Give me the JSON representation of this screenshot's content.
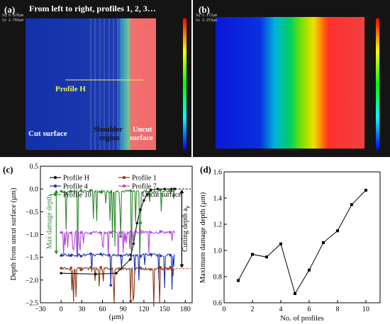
{
  "panels": {
    "a": {
      "tag": "(a)",
      "header": "From left to right, profiles 1, 2, 3…",
      "profile_label": "Profile H",
      "regions": [
        "Cut surface",
        "Shoulder region",
        "Uncut surface"
      ],
      "stats": [
        "Sq 0.826μm",
        "Sz 2.760μm"
      ]
    },
    "b": {
      "tag": "(b)",
      "stats": [
        "Sq 1.172μm",
        "Sz 3.253μm"
      ]
    },
    "c": {
      "tag": "(c)"
    },
    "d": {
      "tag": "(d)"
    }
  },
  "colors": {
    "profile_H": "#111111",
    "profile_1": "#8b3a1a",
    "profile_4": "#1a33b0",
    "profile_7": "#b44cd6",
    "profile_10": "#2f8a2f",
    "uncut_red": "#f26a6a",
    "cut_blue": "#1230a8"
  },
  "chart_data": [
    {
      "panel": "c",
      "type": "line",
      "xlabel": "(μm)",
      "ylabel": "Depth from uncut surface (μm)",
      "xlim": [
        -30,
        190
      ],
      "ylim": [
        -2.5,
        0.5
      ],
      "xticks": [
        "−30",
        "0",
        "30",
        "60",
        "90",
        "120",
        "150",
        "180"
      ],
      "yticks": [
        "0.5",
        "0.0",
        "−0.5",
        "−1.0",
        "−1.5",
        "−2.0",
        "−2.5"
      ],
      "legend": [
        "Profile H",
        "Profile 1",
        "Profile 4",
        "Profile 7",
        "Profile 10"
      ],
      "legend_placement": "top",
      "series": [
        {
          "name": "Profile 10",
          "baseline": -0.05,
          "x_range": [
            0,
            165
          ],
          "dips_to": -1.45
        },
        {
          "name": "Profile 7",
          "baseline": -0.95,
          "x_range": [
            0,
            165
          ],
          "dips_to": -1.35
        },
        {
          "name": "Profile 4",
          "baseline": -1.45,
          "x_range": [
            0,
            165
          ],
          "dips_to": -2.1
        },
        {
          "name": "Profile 1",
          "baseline": -1.75,
          "x_range": [
            0,
            165
          ],
          "dips_to": -2.45
        },
        {
          "name": "Profile H",
          "x": [
            0,
            50,
            80,
            100,
            105,
            110,
            115,
            120,
            125,
            130,
            140,
            150,
            160,
            165
          ],
          "y": [
            -1.85,
            -1.87,
            -1.85,
            -1.55,
            -1.2,
            -0.75,
            -0.45,
            -0.25,
            -0.12,
            -0.02,
            0.0,
            0.0,
            0.0,
            0.0
          ]
        }
      ],
      "annotations": [
        "Uncut surface",
        "Max damage depth",
        "Cutting depth a",
        "p"
      ]
    },
    {
      "panel": "d",
      "type": "line",
      "xlabel": "No. of profiles",
      "ylabel": "Maximum damage depth (μm)",
      "xlim": [
        0,
        11
      ],
      "ylim": [
        0.6,
        1.6
      ],
      "xticks": [
        "0",
        "2",
        "4",
        "6",
        "8",
        "10"
      ],
      "yticks": [
        "0.6",
        "0.8",
        "1.0",
        "1.2",
        "1.4",
        "1.6"
      ],
      "grid": false,
      "series": [
        {
          "x": [
            1,
            2,
            3,
            4,
            5,
            6,
            7,
            8,
            9,
            10
          ],
          "values": [
            0.77,
            0.97,
            0.95,
            1.05,
            0.67,
            0.85,
            1.06,
            1.15,
            1.35,
            1.46
          ]
        }
      ]
    }
  ]
}
